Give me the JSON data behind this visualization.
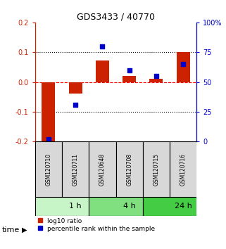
{
  "title": "GDS3433 / 40770",
  "samples": [
    "GSM120710",
    "GSM120711",
    "GSM120648",
    "GSM120708",
    "GSM120715",
    "GSM120716"
  ],
  "log10_ratio": [
    -0.21,
    -0.038,
    0.072,
    0.02,
    0.01,
    0.1
  ],
  "percentile_rank": [
    2.0,
    31.0,
    80.0,
    60.0,
    55.0,
    65.0
  ],
  "ylim_left": [
    -0.2,
    0.2
  ],
  "ylim_right": [
    0,
    100
  ],
  "yticks_left": [
    -0.2,
    -0.1,
    0.0,
    0.1,
    0.2
  ],
  "yticks_right": [
    0,
    25,
    50,
    75,
    100
  ],
  "yticklabels_right": [
    "0",
    "25",
    "50",
    "75",
    "100%"
  ],
  "time_groups": [
    {
      "label": "1 h",
      "start": 0,
      "end": 2,
      "color": "#c8f5c8"
    },
    {
      "label": "4 h",
      "start": 2,
      "end": 4,
      "color": "#80e080"
    },
    {
      "label": "24 h",
      "start": 4,
      "end": 6,
      "color": "#44cc44"
    }
  ],
  "bar_color": "#cc2200",
  "square_color": "#0000cc",
  "bar_width": 0.5,
  "square_size": 18,
  "legend_items": [
    "log10 ratio",
    "percentile rank within the sample"
  ],
  "xlabel_time": "time",
  "sample_box_color": "#d8d8d8",
  "left_axis_color": "#cc2200",
  "right_axis_color": "#0000cc",
  "title_fontsize": 9,
  "tick_fontsize": 7,
  "sample_fontsize": 5.5,
  "time_fontsize": 8,
  "legend_fontsize": 6.5
}
